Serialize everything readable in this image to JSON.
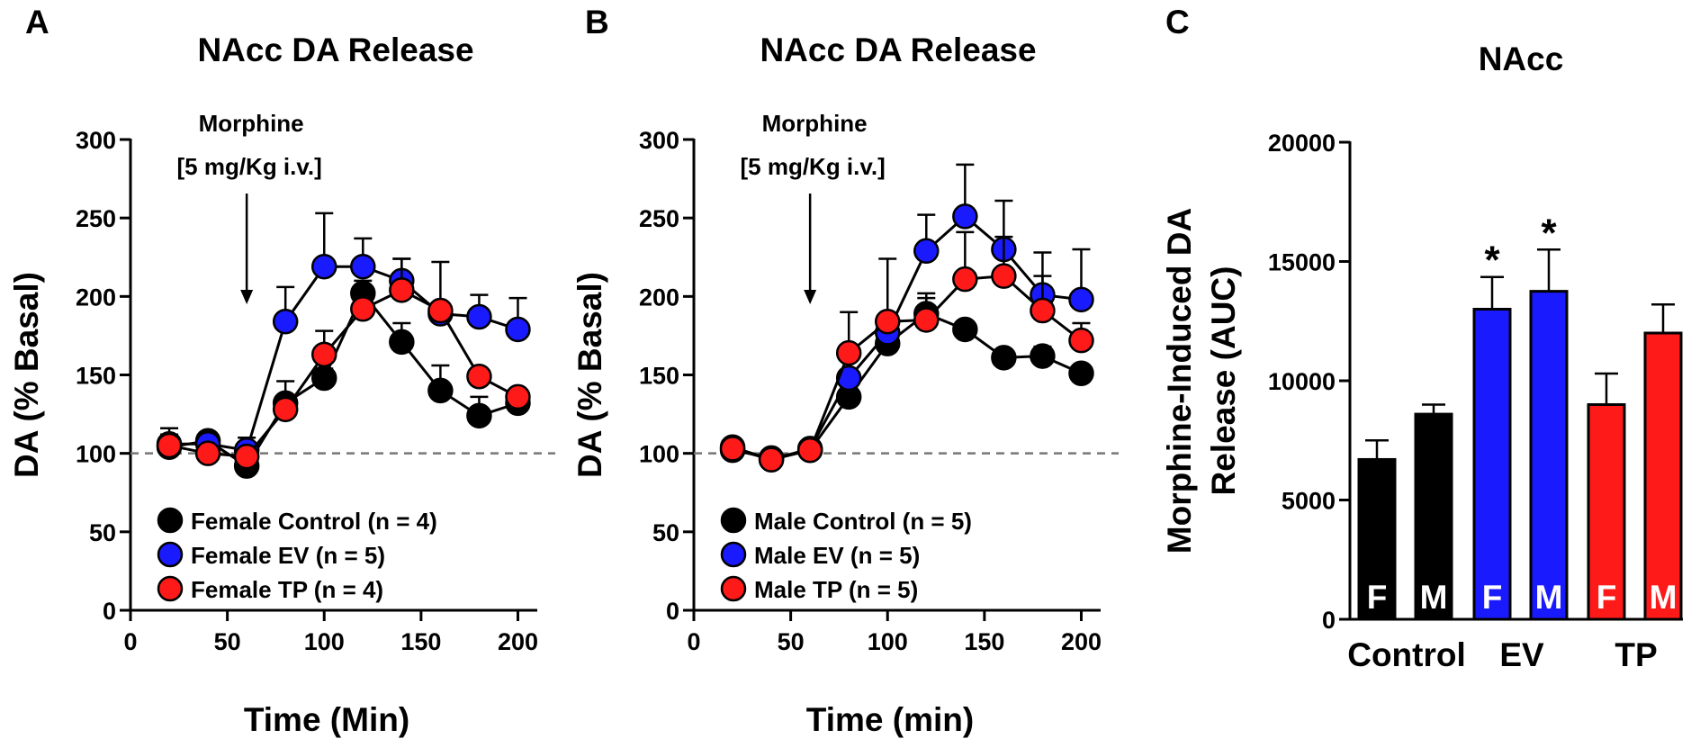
{
  "colors": {
    "control": "#000000",
    "ev": "#1a1aff",
    "tp": "#ff1a1a"
  },
  "chart_data": [
    {
      "panel": "A",
      "type": "line",
      "title": "NAcc DA Release",
      "xlabel": "Time (Min)",
      "ylabel": "DA (% Basal)",
      "xlim": [
        0,
        210
      ],
      "ylim": [
        0,
        300
      ],
      "xticks": [
        0,
        50,
        100,
        150,
        200
      ],
      "yticks": [
        0,
        50,
        100,
        150,
        200,
        250,
        300
      ],
      "reference_line": 100,
      "annotation": {
        "line1": "Morphine",
        "line2": "[5 mg/Kg i.v.]",
        "x": 60
      },
      "legend_position": "bottom-left",
      "x": [
        20,
        40,
        60,
        80,
        100,
        120,
        140,
        160,
        180,
        200
      ],
      "series": [
        {
          "name": "Female Control (n = 4)",
          "color": "control",
          "values": [
            104,
            108,
            92,
            132,
            148,
            202,
            171,
            140,
            124,
            132
          ],
          "errors": [
            8,
            5,
            6,
            14,
            6,
            8,
            12,
            16,
            12,
            5
          ]
        },
        {
          "name": "Female EV (n = 5)",
          "color": "ev",
          "values": [
            106,
            106,
            102,
            184,
            219,
            219,
            210,
            189,
            187,
            179
          ],
          "errors": [
            10,
            6,
            8,
            22,
            34,
            18,
            14,
            33,
            14,
            20
          ]
        },
        {
          "name": "Female TP (n = 4)",
          "color": "tp",
          "values": [
            105,
            100,
            98,
            128,
            163,
            192,
            204,
            191,
            149,
            136
          ],
          "errors": [
            6,
            4,
            5,
            6,
            15,
            8,
            20,
            5,
            2,
            4
          ]
        }
      ]
    },
    {
      "panel": "B",
      "type": "line",
      "title": "NAcc DA Release",
      "xlabel": "Time (min)",
      "ylabel": "DA (% Basal)",
      "xlim": [
        0,
        210
      ],
      "ylim": [
        0,
        300
      ],
      "xticks": [
        0,
        50,
        100,
        150,
        200
      ],
      "yticks": [
        0,
        50,
        100,
        150,
        200,
        250,
        300
      ],
      "reference_line": 100,
      "annotation": {
        "line1": "Morphine",
        "line2": "[5 mg/Kg i.v.]",
        "x": 60
      },
      "legend_position": "bottom-left",
      "x": [
        20,
        40,
        60,
        80,
        100,
        120,
        140,
        160,
        180,
        200
      ],
      "series": [
        {
          "name": "Male Control (n = 5)",
          "color": "control",
          "values": [
            102,
            97,
            102,
            136,
            170,
            189,
            179,
            161,
            162,
            151
          ],
          "errors": [
            6,
            4,
            4,
            6,
            6,
            10,
            4,
            4,
            6,
            4
          ]
        },
        {
          "name": "Male EV (n = 5)",
          "color": "ev",
          "values": [
            104,
            96,
            103,
            148,
            177,
            229,
            251,
            230,
            201,
            198
          ],
          "errors": [
            5,
            4,
            4,
            12,
            8,
            23,
            33,
            31,
            27,
            32
          ]
        },
        {
          "name": "Male TP (n = 5)",
          "color": "tp",
          "values": [
            103,
            96,
            102,
            164,
            184,
            185,
            211,
            213,
            191,
            172
          ],
          "errors": [
            5,
            4,
            4,
            26,
            40,
            17,
            30,
            25,
            22,
            11
          ]
        }
      ]
    },
    {
      "panel": "C",
      "type": "bar",
      "title": "NAcc",
      "ylabel_line1": "Morphine-Induced DA",
      "ylabel_line2": "Release (AUC)",
      "ylim": [
        0,
        20000
      ],
      "yticks": [
        0,
        5000,
        10000,
        15000,
        20000
      ],
      "groups": [
        "Control",
        "EV",
        "TP"
      ],
      "bars": [
        {
          "group": "Control",
          "label": "F",
          "color": "control",
          "value": 6700,
          "error": 800,
          "star": ""
        },
        {
          "group": "Control",
          "label": "M",
          "color": "control",
          "value": 8600,
          "error": 400,
          "star": ""
        },
        {
          "group": "EV",
          "label": "F",
          "color": "ev",
          "value": 13000,
          "error": 1350,
          "star": "*"
        },
        {
          "group": "EV",
          "label": "M",
          "color": "ev",
          "value": 13750,
          "error": 1750,
          "star": "*"
        },
        {
          "group": "TP",
          "label": "F",
          "color": "tp",
          "value": 9000,
          "error": 1300,
          "star": ""
        },
        {
          "group": "TP",
          "label": "M",
          "color": "tp",
          "value": 12000,
          "error": 1200,
          "star": ""
        }
      ]
    }
  ]
}
